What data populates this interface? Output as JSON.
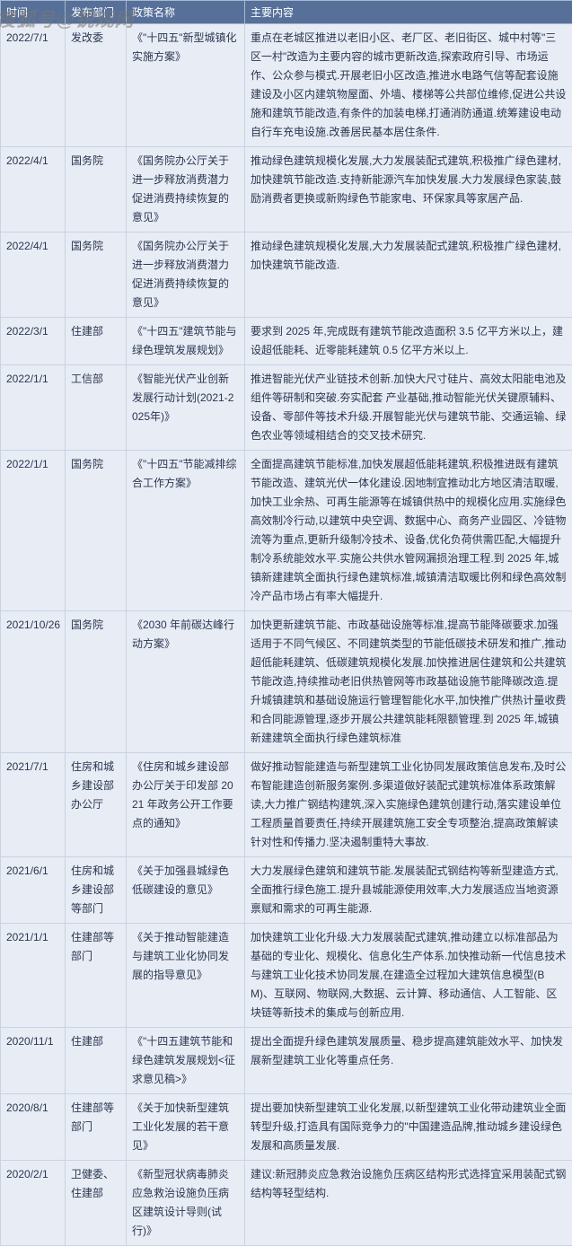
{
  "watermark": "搜狐号@锐观网",
  "headers": [
    "时间",
    "发布部门",
    "政策名称",
    "主要内容"
  ],
  "colors": {
    "header_bg": "#567099",
    "header_text": "#ffffff",
    "cell_bg": "#e8edf5",
    "cell_text": "#2a3550",
    "border": "#c8d2e4"
  },
  "rows": [
    {
      "date": "2022/7/1",
      "dept": "发改委",
      "policy": "《\"十四五\"新型城镇化实施方案》",
      "content": "重点在老城区推进以老旧小区、老厂区、老旧街区、城中村等\"三区一村\"改造为主要内容的城市更新改造,探索政府引导、市场运作、公众参与模式.开展老旧小区改造,推进水电路气信等配套设施建设及小区内建筑物屋面、外墙、楼梯等公共部位维修,促进公共设施和建筑节能改造,有条件的加装电梯,打通消防通道.统筹建设电动自行车充电设施.改善居民基本居住条件."
    },
    {
      "date": "2022/4/1",
      "dept": "国务院",
      "policy": "《国务院办公厅关于进一步释放消费潜力促进消费持续恢复的意见》",
      "content": "推动绿色建筑规模化发展,大力发展装配式建筑,积极推广绿色建材,加快建筑节能改造.支持新能源汽车加快发展.大力发展绿色家装,鼓励消费者更换或新购绿色节能家电、环保家具等家居产品."
    },
    {
      "date": "2022/4/1",
      "dept": "国务院",
      "policy": "《国务院办公厅关于进一步释放消费潜力促进消费持续恢复的意见》",
      "content": "推动绿色建筑规模化发展,大力发展装配式建筑,积极推广绿色建材,加快建筑节能改造."
    },
    {
      "date": "2022/3/1",
      "dept": "住建部",
      "policy": "《\"十四五\"建筑节能与绿色理筑发展规划》",
      "content": "要求到 2025 年,完成既有建筑节能改造面积 3.5 亿平方米以上，建设超低能耗、近零能耗建筑 0.5 亿平方米以上."
    },
    {
      "date": "2022/1/1",
      "dept": "工信部",
      "policy": "《智能光伏产业创新发展行动计划(2021-2025年)》",
      "content": "推进智能光伏产业链技术创新.加快大尺寸硅片、高效太阳能电池及组件等研制和突破.夯实配套 产业基础,推动智能光伏关键原辅料、设备、零部件等技术升级.开展智能光伏与建筑节能、交通运输、绿色农业等领域相结合的交叉技术研究."
    },
    {
      "date": "2022/1/1",
      "dept": "国务院",
      "policy": "《\"十四五\"节能减排综合工作方案》",
      "content": "全面提高建筑节能标准,加快发展超低能耗建筑,积极推进既有建筑节能改造、建筑光伏一体化建设.因地制宜推动北方地区清洁取暖,加快工业余热、可再生能源等在城镇供热中的规模化应用.实施绿色高效制冷行动,以建筑中央空调、数据中心、商务产业园区、冷链物流等为重点,更新升级制冷技术、设备,优化负荷供需匹配,大幅提升制冷系统能效水平.实施公共供水管网漏损治理工程.到 2025 年,城镇新建建筑全面执行绿色建筑标准,城镇清洁取暖比例和绿色高效制冷产品市场占有率大幅提升."
    },
    {
      "date": "2021/10/26",
      "dept": "国务院",
      "policy": "《2030 年前碳达峰行动方案》",
      "content": "加快更新建筑节能、市政基础设施等标准,提高节能降碳要求.加强适用于不同气候区、不同建筑类型的节能低碳技术研发和推广,推动超低能耗建筑、低碳建筑规模化发展.加快推进居住建筑和公共建筑节能改造,持续推动老旧供热管网等市政基础设施节能降碳改造.提升城镇建筑和基础设施运行管理智能化水平,加快推广供热计量收费和合同能源管理,逐步开展公共建筑能耗限额管理.到 2025 年,城镇新建建筑全面执行绿色建筑标准"
    },
    {
      "date": "2021/7/1",
      "dept": "住房和城乡建设部办公厅",
      "policy": "《住房和城乡建设部办公厅关于印发部 2021 年政务公开工作要点的通知》",
      "content": "做好推动智能建造与新型建筑工业化协同发展政策信息发布,及时公布智能建造创新服务案例.多渠道做好装配式建筑标准体系政策解读,大力推广钢结构建筑,深入实施绿色建筑创建行动,落实建设单位工程质量首要责任,持续开展建筑施工安全专项整治,提高政策解读针对性和传播力.坚决遏制重特大事故."
    },
    {
      "date": "2021/6/1",
      "dept": "住房和城乡建设部等部门",
      "policy": "《关于加强县城绿色低碳建设的意见》",
      "content": "大力发展绿色建筑和建筑节能.发展装配式钢结构等新型建造方式,全面推行绿色施工.提升县城能源使用效率,大力发展适应当地资源禀赋和需求的可再生能源."
    },
    {
      "date": "2021/1/1",
      "dept": "住建部等部门",
      "policy": "《关于推动智能建造与建筑工业化协同发展的指导意见》",
      "content": "加快建筑工业化升级.大力发展装配式建筑,推动建立以标准部品为基础的专业化、规模化、信息化生产体系.加快推动新一代信息技术与建筑工业化技术协同发展,在建造全过程加大建筑信息模型(BM)、互联网、物联网,大数据、云计算、移动通信、人工智能、区块链等新技术的集成与创新应用."
    },
    {
      "date": "2020/11/1",
      "dept": "住建部",
      "policy": "《\"十四五建筑节能和绿色建筑发展规划<征求意见稿>》",
      "content": "提出全面提升绿色建筑发展质量、稳步提高建筑能效水平、加快发展新型建筑工业化等重点任务."
    },
    {
      "date": "2020/8/1",
      "dept": "住建部等部门",
      "policy": "《关于加快新型建筑工业化发展的若干意见》",
      "content": "提出要加快新型建筑工业化发展,以新型建筑工业化带动建筑业全面转型升级,打造具有国际竞争力的\"中国建造品牌,推动城乡建设绿色发展和高质量发展."
    },
    {
      "date": "2020/2/1",
      "dept": "卫健委、住建部",
      "policy": "《新型冠状病毒肺炎应急救治设施负压病区建筑设计导则(试行)》",
      "content": "建议:新冠肺炎应急救治设施负压病区结构形式选择宜采用装配式钢结构等轻型结构."
    }
  ]
}
